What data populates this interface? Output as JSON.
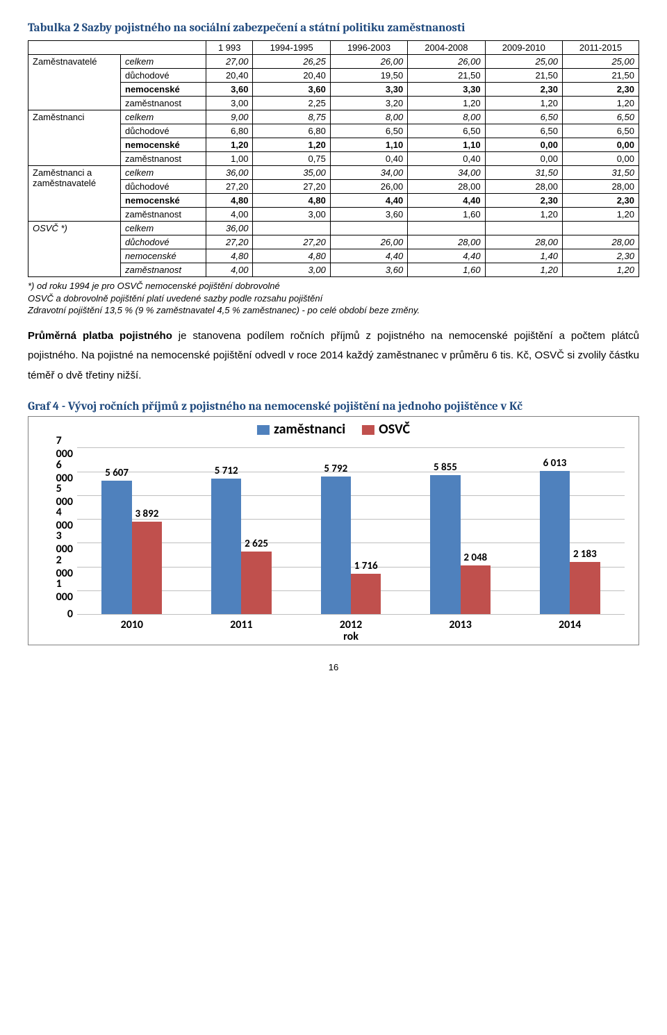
{
  "table": {
    "title": "Tabulka 2 Sazby pojistného na sociální zabezpečení a státní politiku zaměstnanosti",
    "columns": [
      "1 993",
      "1994-1995",
      "1996-2003",
      "2004-2008",
      "2009-2010",
      "2011-2015"
    ],
    "blocks": [
      {
        "group": "Zaměstnavatelé",
        "rows": [
          {
            "label": "celkem",
            "italic": true,
            "vals": [
              "27,00",
              "26,25",
              "26,00",
              "26,00",
              "25,00",
              "25,00"
            ]
          },
          {
            "label": "důchodové",
            "vals": [
              "20,40",
              "20,40",
              "19,50",
              "21,50",
              "21,50",
              "21,50"
            ]
          },
          {
            "label": "nemocenské",
            "bold": true,
            "vals": [
              "3,60",
              "3,60",
              "3,30",
              "3,30",
              "2,30",
              "2,30"
            ]
          },
          {
            "label": "zaměstnanost",
            "vals": [
              "3,00",
              "2,25",
              "3,20",
              "1,20",
              "1,20",
              "1,20"
            ]
          }
        ]
      },
      {
        "group": "Zaměstnanci",
        "rows": [
          {
            "label": "celkem",
            "italic": true,
            "vals": [
              "9,00",
              "8,75",
              "8,00",
              "8,00",
              "6,50",
              "6,50"
            ]
          },
          {
            "label": "důchodové",
            "vals": [
              "6,80",
              "6,80",
              "6,50",
              "6,50",
              "6,50",
              "6,50"
            ]
          },
          {
            "label": "nemocenské",
            "bold": true,
            "vals": [
              "1,20",
              "1,20",
              "1,10",
              "1,10",
              "0,00",
              "0,00"
            ]
          },
          {
            "label": "zaměstnanost",
            "vals": [
              "1,00",
              "0,75",
              "0,40",
              "0,40",
              "0,00",
              "0,00"
            ]
          }
        ]
      },
      {
        "group": "Zaměstnanci a zaměstnavatelé",
        "rows": [
          {
            "label": "celkem",
            "italic": true,
            "vals": [
              "36,00",
              "35,00",
              "34,00",
              "34,00",
              "31,50",
              "31,50"
            ]
          },
          {
            "label": "důchodové",
            "vals": [
              "27,20",
              "27,20",
              "26,00",
              "28,00",
              "28,00",
              "28,00"
            ]
          },
          {
            "label": "nemocenské",
            "bold": true,
            "vals": [
              "4,80",
              "4,80",
              "4,40",
              "4,40",
              "2,30",
              "2,30"
            ]
          },
          {
            "label": "zaměstnanost",
            "vals": [
              "4,00",
              "3,00",
              "3,60",
              "1,60",
              "1,20",
              "1,20"
            ]
          }
        ]
      },
      {
        "group": "OSVČ *)",
        "all_italic": true,
        "rows": [
          {
            "label": "celkem",
            "italic": true,
            "vals": [
              "36,00",
              "",
              "",
              "",
              "",
              ""
            ]
          },
          {
            "label": "důchodové",
            "vals": [
              "27,20",
              "27,20",
              "26,00",
              "28,00",
              "28,00",
              "28,00"
            ]
          },
          {
            "label": "nemocenské",
            "vals": [
              "4,80",
              "4,80",
              "4,40",
              "4,40",
              "1,40",
              "2,30"
            ]
          },
          {
            "label": "zaměstnanost",
            "vals": [
              "4,00",
              "3,00",
              "3,60",
              "1,60",
              "1,20",
              "1,20"
            ]
          }
        ]
      }
    ]
  },
  "footnotes": [
    "*) od roku 1994 je pro OSVČ nemocenské pojištění dobrovolné",
    "OSVČ a dobrovolně pojištění platí uvedené sazby podle rozsahu pojištění",
    "Zdravotní pojištění 13,5 % (9 % zaměstnavatel 4,5 % zaměstnanec) - po celé období beze změny."
  ],
  "body": {
    "lead_bold": "Průměrná platba pojistného",
    "rest": " je stanovena podílem ročních příjmů z pojistného na nemocenské pojištění a počtem plátců pojistného. Na pojistné na nemocenské pojištění odvedl v roce 2014 každý zaměstnanec v průměru 6 tis. Kč, OSVČ si zvolily částku téměř o dvě třetiny nižší."
  },
  "chart": {
    "title": "Graf  4 - Vývoj ročních příjmů z pojistného na nemocenské pojištění na jednoho pojištěnce v Kč",
    "legend": [
      {
        "label": "zaměstnanci",
        "color": "#4f81bd"
      },
      {
        "label": "OSVČ",
        "color": "#c0504d"
      }
    ],
    "y_ticks": [
      0,
      1000,
      2000,
      3000,
      4000,
      5000,
      6000,
      7000
    ],
    "y_tick_labels": [
      "0",
      "1 000",
      "2 000",
      "3 000",
      "4 000",
      "5 000",
      "6 000",
      "7 000"
    ],
    "y_max": 7000,
    "x_title": "rok",
    "categories": [
      "2010",
      "2011",
      "2012",
      "2013",
      "2014"
    ],
    "series": [
      {
        "name": "zaměstnanci",
        "color": "#4f81bd",
        "values": [
          5607,
          5712,
          5792,
          5855,
          6013
        ],
        "labels": [
          "5 607",
          "5 712",
          "5 792",
          "5 855",
          "6 013"
        ]
      },
      {
        "name": "OSVČ",
        "color": "#c0504d",
        "values": [
          3892,
          2625,
          1716,
          2048,
          2183
        ],
        "labels": [
          "3 892",
          "2 625",
          "1 716",
          "2 048",
          "2 183"
        ]
      }
    ],
    "bar_group_width_pct": 14,
    "bar_width_pct": 5.5,
    "background": "#ffffff",
    "grid_color": "#bfbfbf",
    "label_fontsize": 16
  },
  "page_number": "16"
}
